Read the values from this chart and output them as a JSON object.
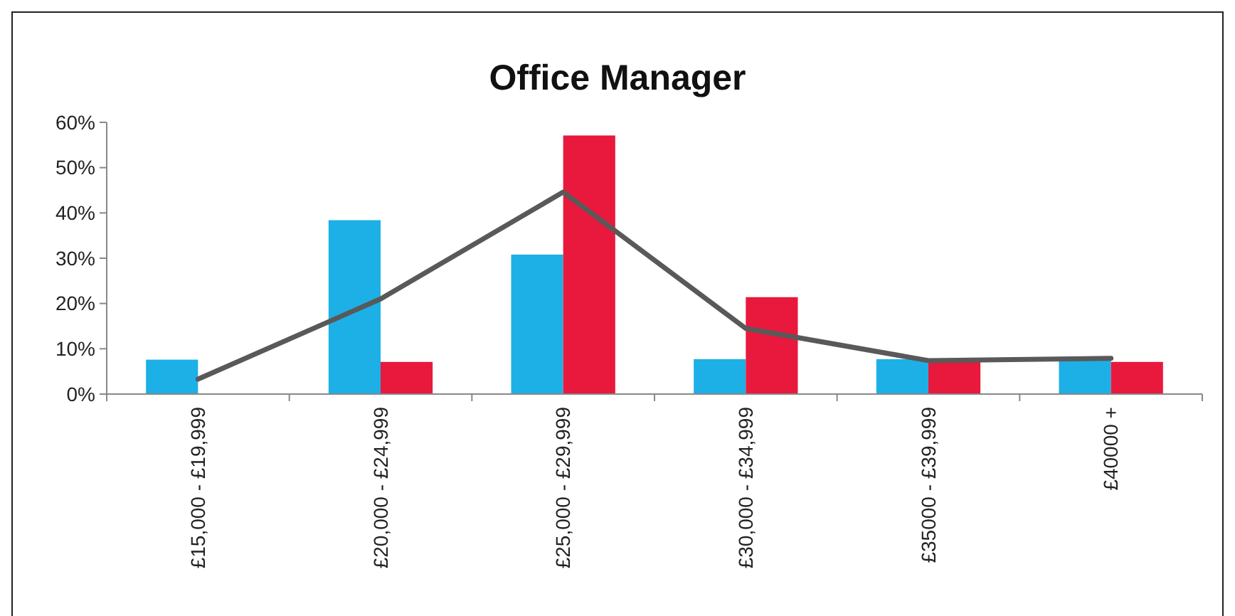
{
  "chart_data": {
    "type": "bar",
    "title": "Office Manager",
    "categories": [
      "£15,000 - £19,999",
      "£20,000 - £24,999",
      "£25,000 - £29,999",
      "£30,000 - £34,999",
      "£35000 - £39,999",
      "£40000 +"
    ],
    "series": [
      {
        "color": "#1cb0e6",
        "values": [
          7.6,
          38.4,
          30.8,
          7.7,
          7.7,
          7.7
        ]
      },
      {
        "color": "#e8193c",
        "values": [
          0,
          7.1,
          57.1,
          21.4,
          7.1,
          7.1
        ]
      },
      {
        "type": "line",
        "color": "#595959",
        "values": [
          3.3,
          21,
          44.6,
          14.5,
          7.4,
          7.9
        ]
      }
    ],
    "ylim": [
      0,
      60
    ],
    "yticks": [
      {
        "value": 0,
        "label": "0%"
      },
      {
        "value": 10,
        "label": "10%"
      },
      {
        "value": 20,
        "label": "20%"
      },
      {
        "value": 30,
        "label": "30%"
      },
      {
        "value": 40,
        "label": "40%"
      },
      {
        "value": 50,
        "label": "50%"
      },
      {
        "value": 60,
        "label": "60%"
      }
    ],
    "marker": "none",
    "line_style": "solid"
  }
}
